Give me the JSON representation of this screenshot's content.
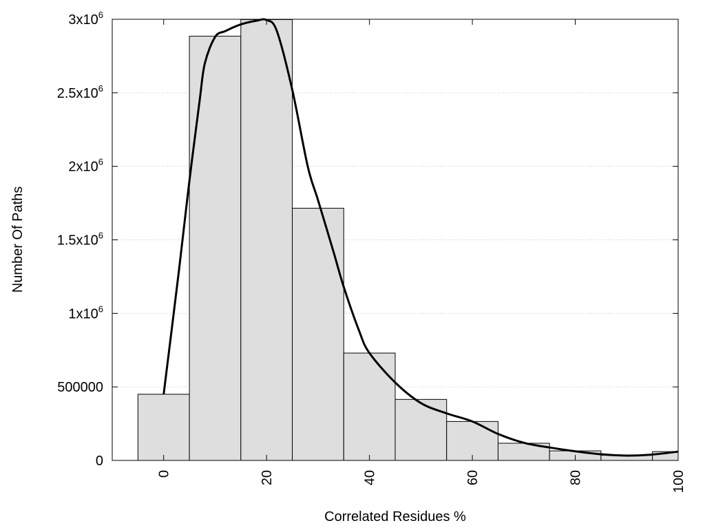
{
  "chart_data": {
    "type": "bar",
    "title": "",
    "xlabel": "Correlated Residues %",
    "ylabel": "Number Of Paths",
    "xlim": [
      -10,
      100
    ],
    "ylim": [
      0,
      3000000
    ],
    "grid": "horizontal dotted",
    "bar_width": 10,
    "bar_color": "#dedede",
    "curve_color": "#000000",
    "x_ticks": [
      0,
      20,
      40,
      60,
      80,
      100
    ],
    "x_tick_labels": [
      "0",
      "20",
      "40",
      "60",
      "80",
      "100"
    ],
    "y_ticks": [
      0,
      500000,
      1000000,
      1500000,
      2000000,
      2500000,
      3000000
    ],
    "y_tick_labels": [
      {
        "base": "0",
        "exp": ""
      },
      {
        "base": "500000",
        "exp": ""
      },
      {
        "base": "1x10",
        "exp": "6"
      },
      {
        "base": "1.5x10",
        "exp": "6"
      },
      {
        "base": "2x10",
        "exp": "6"
      },
      {
        "base": "2.5x10",
        "exp": "6"
      },
      {
        "base": "3x10",
        "exp": "6"
      }
    ],
    "bars": {
      "x": [
        0,
        10,
        20,
        30,
        40,
        50,
        60,
        70,
        80,
        90,
        100
      ],
      "values": [
        450000,
        2885000,
        2998000,
        1715000,
        730000,
        415000,
        265000,
        117000,
        65000,
        35000,
        60000
      ]
    },
    "curve": {
      "x": [
        0,
        3,
        5,
        7,
        8,
        10,
        12,
        15,
        18,
        20,
        22,
        25,
        28,
        30,
        33,
        35,
        38,
        40,
        45,
        50,
        55,
        60,
        65,
        70,
        75,
        80,
        85,
        90,
        95,
        100
      ],
      "values": [
        450000,
        1300000,
        1900000,
        2450000,
        2700000,
        2880000,
        2920000,
        2965000,
        2990000,
        2995000,
        2920000,
        2520000,
        2000000,
        1770000,
        1420000,
        1180000,
        880000,
        730000,
        530000,
        390000,
        320000,
        265000,
        180000,
        120000,
        88000,
        62000,
        42000,
        33000,
        40000,
        60000
      ]
    }
  }
}
